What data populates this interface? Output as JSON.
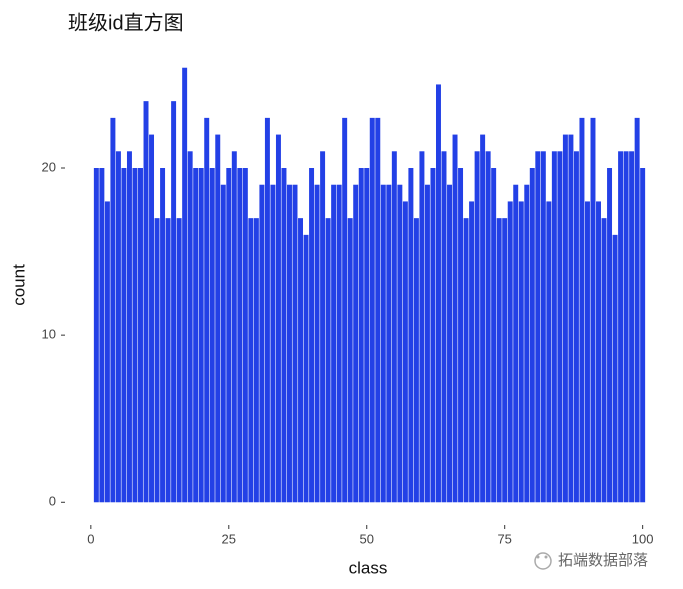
{
  "chart_data": {
    "type": "bar",
    "title": "班级id直方图",
    "x_label": "class",
    "y_label": "count",
    "color": "#2340e6",
    "x": [
      1,
      2,
      3,
      4,
      5,
      6,
      7,
      8,
      9,
      10,
      11,
      12,
      13,
      14,
      15,
      16,
      17,
      18,
      19,
      20,
      21,
      22,
      23,
      24,
      25,
      26,
      27,
      28,
      29,
      30,
      31,
      32,
      33,
      34,
      35,
      36,
      37,
      38,
      39,
      40,
      41,
      42,
      43,
      44,
      45,
      46,
      47,
      48,
      49,
      50,
      51,
      52,
      53,
      54,
      55,
      56,
      57,
      58,
      59,
      60,
      61,
      62,
      63,
      64,
      65,
      66,
      67,
      68,
      69,
      70,
      71,
      72,
      73,
      74,
      75,
      76,
      77,
      78,
      79,
      80,
      81,
      82,
      83,
      84,
      85,
      86,
      87,
      88,
      89,
      90,
      91,
      92,
      93,
      94,
      95,
      96,
      97,
      98,
      99,
      100
    ],
    "values": [
      20,
      20,
      18,
      23,
      21,
      20,
      21,
      20,
      20,
      24,
      22,
      17,
      20,
      17,
      24,
      17,
      26,
      21,
      20,
      20,
      23,
      20,
      22,
      19,
      20,
      21,
      20,
      20,
      17,
      17,
      19,
      23,
      19,
      22,
      20,
      19,
      19,
      17,
      16,
      20,
      19,
      21,
      17,
      19,
      19,
      23,
      17,
      19,
      20,
      20,
      23,
      23,
      19,
      19,
      21,
      19,
      18,
      20,
      17,
      21,
      19,
      20,
      25,
      21,
      19,
      22,
      20,
      17,
      18,
      21,
      22,
      21,
      20,
      17,
      17,
      18,
      19,
      18,
      19,
      20,
      21,
      21,
      18,
      21,
      21,
      22,
      22,
      21,
      23,
      18,
      23,
      18,
      17,
      20,
      16,
      21,
      21,
      21,
      23,
      20
    ],
    "xlim": [
      -4.5,
      105.5
    ],
    "xticks": [
      0,
      25,
      50,
      75,
      100
    ],
    "ylim": [
      -1.3,
      27.3
    ],
    "yticks": [
      0,
      10,
      20
    ],
    "grid": false,
    "watermark": "拓端数据部落"
  }
}
